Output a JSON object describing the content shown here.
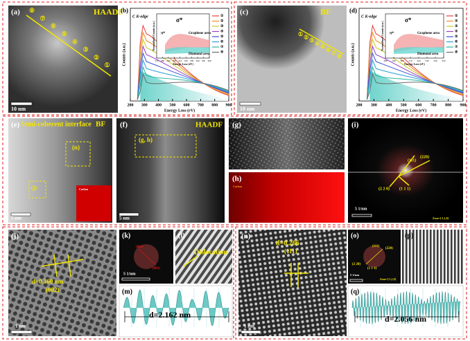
{
  "panels": {
    "a": {
      "label": "(a)",
      "mode": "HAADF",
      "markers": [
        "⑧",
        "⑦",
        "⑥",
        "⑤",
        "④",
        "③",
        "②",
        "①"
      ],
      "scale": "10 nm"
    },
    "b": {
      "label": "(b)",
      "edge": "C K-edge",
      "y_label": "Counts (a.u.)",
      "x_label": "Energy Loss (eV)",
      "xticks": [
        200,
        300,
        400,
        500,
        600,
        700,
        800,
        900
      ],
      "inset_y_label": "Normalized Counts (a.u.)",
      "inset_x_label": "Energy Loss (eV)",
      "inset_xticks": [
        270,
        280,
        290,
        300,
        310,
        320,
        330,
        340,
        350,
        360
      ],
      "sigma": "σ*",
      "pi": "π*",
      "graphene": "Graphene area",
      "diamond": "Diamond area",
      "legend": [
        "①",
        "②",
        "③",
        "④",
        "⑤",
        "⑥",
        "⑦",
        "⑧"
      ],
      "colors": [
        "#e8403a",
        "#f08a24",
        "#c9c92a",
        "#9b3fc4",
        "#3a4fd6",
        "#2a9fd6",
        "#2ab5a0",
        "#6a6a6a"
      ]
    },
    "c": {
      "label": "(c)",
      "mode": "BF",
      "markers": [
        "①",
        "②",
        "③",
        "④",
        "⑤",
        "⑥",
        "⑦",
        "⑧"
      ],
      "scale": "10 nm"
    },
    "d": {
      "label": "(d)",
      "edge": "C K-edge",
      "y_label": "Counts (a.u.)",
      "x_label": "Energy Loss (eV)",
      "xticks": [
        200,
        300,
        400,
        500,
        600,
        700,
        800,
        900
      ],
      "inset_y_label": "Normalized Counts (a.u.)",
      "inset_x_label": "Energy Loss (eV)",
      "inset_xticks": [
        280,
        290,
        300,
        310,
        320,
        330,
        340,
        350
      ],
      "sigma": "σ*",
      "pi": "π*",
      "graphene": "Graphene area",
      "diamond": "Diamond area",
      "legend": [
        "①",
        "②",
        "③",
        "④",
        "⑤",
        "⑥",
        "⑦",
        "⑧"
      ],
      "colors": [
        "#e8403a",
        "#f08a24",
        "#c9c92a",
        "#9b3fc4",
        "#3a4fd6",
        "#2a9fd6",
        "#2ab5a0",
        "#6a6a6a"
      ]
    },
    "e": {
      "label": "(e)",
      "interface": "Semi-coherent interface",
      "mode": "BF",
      "box_n": "(n)",
      "box_j": "(j)",
      "inset": "Carbon",
      "scale": "5 nm"
    },
    "f": {
      "label": "(f)",
      "mode": "HAADF",
      "box": "(g, h)",
      "scale": "5 nm"
    },
    "g": {
      "label": "(g)"
    },
    "h": {
      "label": "(h)",
      "element": "Carbon"
    },
    "i": {
      "label": "(i)",
      "spots": [
        "(111)",
        "(220)",
        "(2 2 0)",
        "(1 1 1)"
      ],
      "scale": "5 1/nm",
      "zone": "Zone=[-1,1,0]"
    },
    "j": {
      "label": "(j)",
      "spacing": "d=0.360 nm",
      "plane": "(002)",
      "scale": "1 nm"
    },
    "k": {
      "label": "(k)",
      "spots": [
        "(002)",
        "(002)"
      ],
      "scale": "5 1/nm"
    },
    "l": {
      "label": "(l)",
      "feature": "Dislocation"
    },
    "m": {
      "label": "(m)",
      "spacing": "d=2.162 nm"
    },
    "n": {
      "label": "(n)",
      "spacing": "d=0.206",
      "plane": "(111)",
      "scale": "1 nm"
    },
    "o": {
      "label": "(o)",
      "spots": [
        "(111)",
        "(220)",
        "(2 20)",
        "(1 1 1)"
      ],
      "scale": "5 1/nm",
      "zone": "Zone=[-1,1,0]"
    },
    "p": {
      "label": "(p)"
    },
    "q": {
      "label": "(q)",
      "spacing": "d=2.056 nm"
    }
  }
}
